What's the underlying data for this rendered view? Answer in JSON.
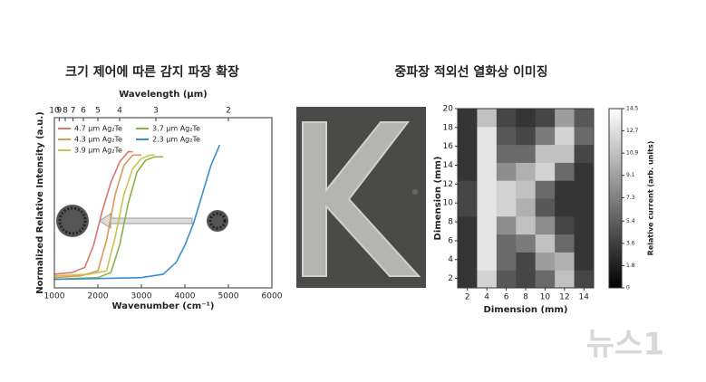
{
  "chart_data": [
    {
      "type": "line",
      "title": "크기 제어에 따른 감지 파장 확장",
      "xlabel": "Wavenumber (cm⁻¹)",
      "ylabel": "Normalized Relative Intensity (a.u.)",
      "x2label": "Wavelength (μm)",
      "xlim": [
        1000,
        6000
      ],
      "xticks": [
        1000,
        2000,
        3000,
        4000,
        5000,
        6000
      ],
      "x2ticks": [
        10,
        9,
        8,
        7,
        6,
        5,
        4,
        3,
        2
      ],
      "ylim": [
        0,
        1
      ],
      "series": [
        {
          "name": "4.7 μm Ag₂Te",
          "color": "#d9776a",
          "x": [
            1000,
            1400,
            1700,
            1900,
            2100,
            2300,
            2500,
            2700,
            2800
          ],
          "values": [
            0.08,
            0.09,
            0.12,
            0.25,
            0.45,
            0.62,
            0.74,
            0.8,
            0.8
          ]
        },
        {
          "name": "4.3 μm Ag₂Te",
          "color": "#d99a5a",
          "x": [
            1000,
            1600,
            2000,
            2200,
            2400,
            2600,
            2800,
            3000
          ],
          "values": [
            0.06,
            0.07,
            0.1,
            0.28,
            0.55,
            0.72,
            0.78,
            0.78
          ]
        },
        {
          "name": "3.9 μm Ag₂Te",
          "color": "#c9c450",
          "x": [
            1000,
            1800,
            2200,
            2400,
            2600,
            2800,
            3000,
            3200,
            3300
          ],
          "values": [
            0.07,
            0.08,
            0.1,
            0.3,
            0.55,
            0.7,
            0.76,
            0.78,
            0.78
          ]
        },
        {
          "name": "3.7 μm Ag₂Te",
          "color": "#86b548",
          "x": [
            1000,
            2000,
            2300,
            2500,
            2700,
            2900,
            3100,
            3300,
            3500
          ],
          "values": [
            0.05,
            0.06,
            0.09,
            0.25,
            0.5,
            0.68,
            0.75,
            0.77,
            0.77
          ]
        },
        {
          "name": "2.3 μm Ag₂Te",
          "color": "#3a8fcc",
          "x": [
            1000,
            3000,
            3500,
            3800,
            4000,
            4200,
            4400,
            4600,
            4800
          ],
          "values": [
            0.05,
            0.06,
            0.08,
            0.15,
            0.25,
            0.38,
            0.55,
            0.72,
            0.84
          ]
        }
      ]
    },
    {
      "type": "heatmap",
      "title": "중파장 적외선 열화상 이미징",
      "xlabel": "Dimension (mm)",
      "ylabel": "Dimension (mm)",
      "colorbar_label": "Relative current (arb. units)",
      "xlim": [
        1,
        15
      ],
      "xticks": [
        2,
        4,
        6,
        8,
        10,
        12,
        14
      ],
      "ylim": [
        1,
        20
      ],
      "yticks": [
        2,
        4,
        6,
        8,
        10,
        12,
        14,
        16,
        18,
        20
      ],
      "clim": [
        0,
        14.5
      ],
      "cticks": [
        0.0,
        1.8,
        3.6,
        5.4,
        7.3,
        9.1,
        10.9,
        12.7,
        14.5
      ],
      "xbins": [
        1,
        3,
        5,
        7,
        9,
        11,
        13,
        15
      ],
      "ybins": [
        1,
        2.9,
        4.8,
        6.7,
        8.6,
        10.5,
        12.4,
        14.3,
        16.2,
        18.1,
        20
      ],
      "z": [
        [
          3,
          12,
          5,
          4,
          6,
          11,
          4
        ],
        [
          3,
          13,
          6,
          4,
          9,
          10,
          3
        ],
        [
          3,
          13,
          6,
          7,
          11,
          6,
          3
        ],
        [
          3,
          13,
          8,
          11,
          8,
          4,
          3
        ],
        [
          4,
          13,
          12,
          10,
          5,
          3,
          3
        ],
        [
          4,
          13,
          12,
          11,
          6,
          3,
          3
        ],
        [
          3,
          13,
          8,
          10,
          12,
          6,
          3
        ],
        [
          3,
          13,
          6,
          6,
          11,
          11,
          4
        ],
        [
          3,
          13,
          5,
          4,
          7,
          12,
          6
        ],
        [
          3,
          11,
          4,
          3,
          4,
          9,
          5
        ]
      ]
    }
  ],
  "watermark": "뉴스1"
}
